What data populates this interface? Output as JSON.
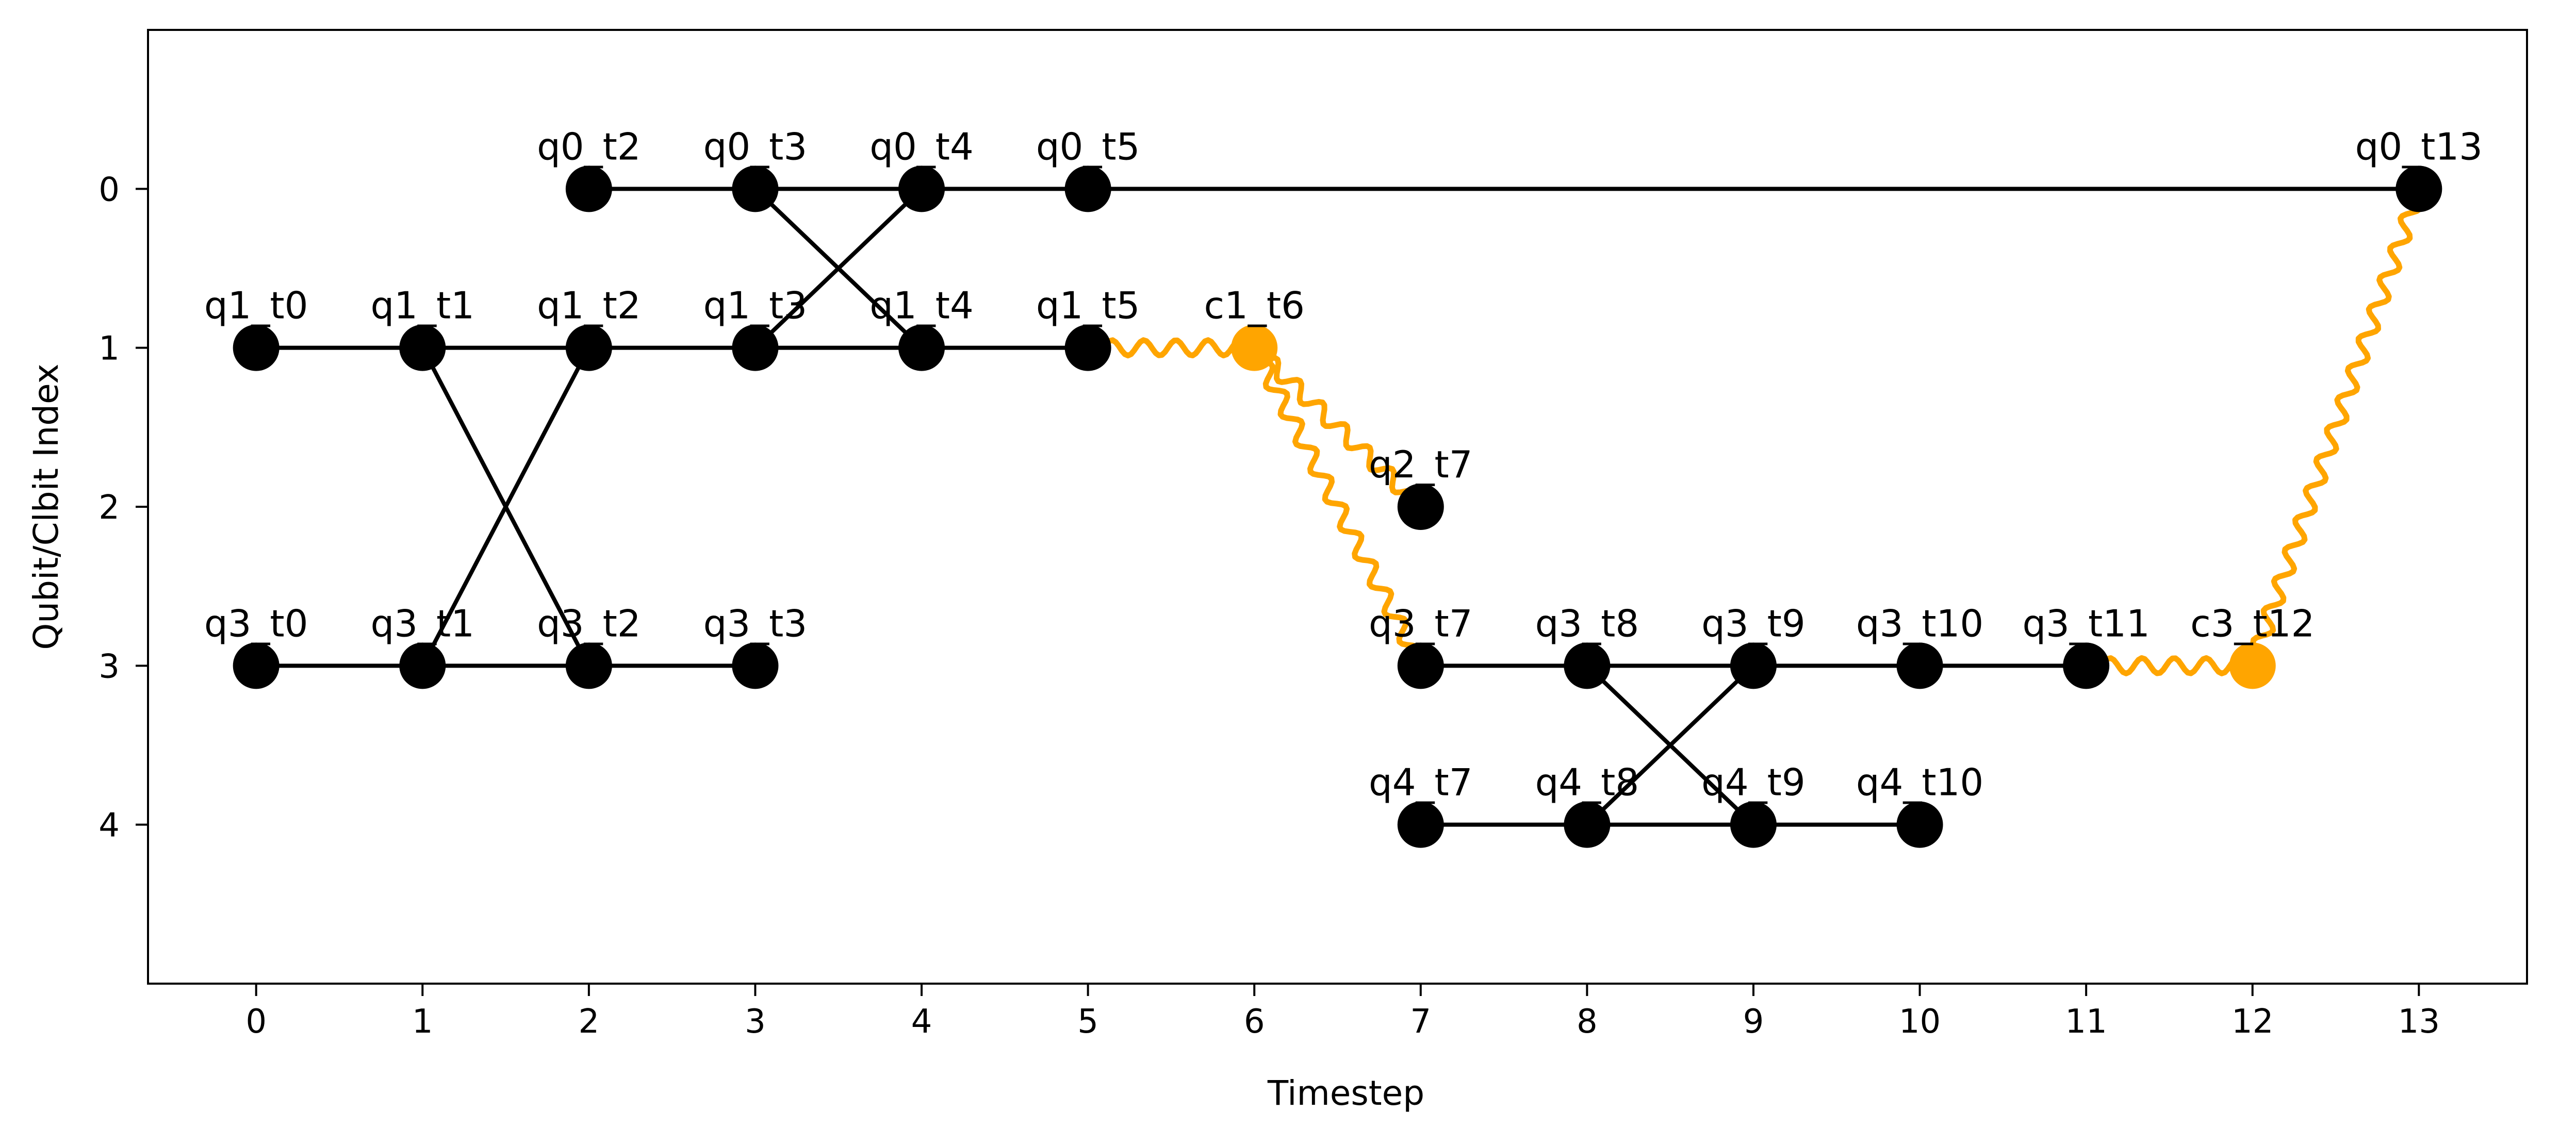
{
  "chart_data": {
    "type": "scatter",
    "title": "",
    "xlabel": "Timestep",
    "ylabel": "Qubit/Clbit Index",
    "xlim": [
      -0.65,
      13.65
    ],
    "ylim": [
      -1.0,
      5.0
    ],
    "y_inverted": true,
    "x_ticks": [
      0,
      1,
      2,
      3,
      4,
      5,
      6,
      7,
      8,
      9,
      10,
      11,
      12,
      13
    ],
    "y_ticks": [
      0,
      1,
      2,
      3,
      4
    ],
    "x_tick_labels": [
      "0",
      "1",
      "2",
      "3",
      "4",
      "5",
      "6",
      "7",
      "8",
      "9",
      "10",
      "11",
      "12",
      "13"
    ],
    "y_tick_labels": [
      "0",
      "1",
      "2",
      "3",
      "4"
    ],
    "grid": false,
    "colors": {
      "node": "#000000",
      "classical_node": "#ffa500",
      "edge": "#000000",
      "wavy_edge": "#ffa500"
    },
    "nodes": [
      {
        "label": "q0_t2",
        "x": 2,
        "y": 0,
        "kind": "qubit"
      },
      {
        "label": "q0_t3",
        "x": 3,
        "y": 0,
        "kind": "qubit"
      },
      {
        "label": "q0_t4",
        "x": 4,
        "y": 0,
        "kind": "qubit"
      },
      {
        "label": "q0_t5",
        "x": 5,
        "y": 0,
        "kind": "qubit"
      },
      {
        "label": "q0_t13",
        "x": 13,
        "y": 0,
        "kind": "qubit"
      },
      {
        "label": "q1_t0",
        "x": 0,
        "y": 1,
        "kind": "qubit"
      },
      {
        "label": "q1_t1",
        "x": 1,
        "y": 1,
        "kind": "qubit"
      },
      {
        "label": "q1_t2",
        "x": 2,
        "y": 1,
        "kind": "qubit"
      },
      {
        "label": "q1_t3",
        "x": 3,
        "y": 1,
        "kind": "qubit"
      },
      {
        "label": "q1_t4",
        "x": 4,
        "y": 1,
        "kind": "qubit"
      },
      {
        "label": "q1_t5",
        "x": 5,
        "y": 1,
        "kind": "qubit"
      },
      {
        "label": "c1_t6",
        "x": 6,
        "y": 1,
        "kind": "clbit"
      },
      {
        "label": "q2_t7",
        "x": 7,
        "y": 2,
        "kind": "qubit"
      },
      {
        "label": "q3_t0",
        "x": 0,
        "y": 3,
        "kind": "qubit"
      },
      {
        "label": "q3_t1",
        "x": 1,
        "y": 3,
        "kind": "qubit"
      },
      {
        "label": "q3_t2",
        "x": 2,
        "y": 3,
        "kind": "qubit"
      },
      {
        "label": "q3_t3",
        "x": 3,
        "y": 3,
        "kind": "qubit"
      },
      {
        "label": "q3_t7",
        "x": 7,
        "y": 3,
        "kind": "qubit"
      },
      {
        "label": "q3_t8",
        "x": 8,
        "y": 3,
        "kind": "qubit"
      },
      {
        "label": "q3_t9",
        "x": 9,
        "y": 3,
        "kind": "qubit"
      },
      {
        "label": "q3_t10",
        "x": 10,
        "y": 3,
        "kind": "qubit"
      },
      {
        "label": "q3_t11",
        "x": 11,
        "y": 3,
        "kind": "qubit"
      },
      {
        "label": "c3_t12",
        "x": 12,
        "y": 3,
        "kind": "clbit"
      },
      {
        "label": "q4_t7",
        "x": 7,
        "y": 4,
        "kind": "qubit"
      },
      {
        "label": "q4_t8",
        "x": 8,
        "y": 4,
        "kind": "qubit"
      },
      {
        "label": "q4_t9",
        "x": 9,
        "y": 4,
        "kind": "qubit"
      },
      {
        "label": "q4_t10",
        "x": 10,
        "y": 4,
        "kind": "qubit"
      }
    ],
    "edges": [
      {
        "from": "q0_t2",
        "to": "q0_t3",
        "style": "straight"
      },
      {
        "from": "q0_t3",
        "to": "q0_t4",
        "style": "straight"
      },
      {
        "from": "q0_t4",
        "to": "q0_t5",
        "style": "straight"
      },
      {
        "from": "q0_t5",
        "to": "q0_t13",
        "style": "straight"
      },
      {
        "from": "q1_t0",
        "to": "q1_t1",
        "style": "straight"
      },
      {
        "from": "q1_t1",
        "to": "q1_t2",
        "style": "straight"
      },
      {
        "from": "q1_t2",
        "to": "q1_t3",
        "style": "straight"
      },
      {
        "from": "q1_t3",
        "to": "q1_t4",
        "style": "straight"
      },
      {
        "from": "q1_t4",
        "to": "q1_t5",
        "style": "straight"
      },
      {
        "from": "q3_t0",
        "to": "q3_t1",
        "style": "straight"
      },
      {
        "from": "q3_t1",
        "to": "q3_t2",
        "style": "straight"
      },
      {
        "from": "q3_t2",
        "to": "q3_t3",
        "style": "straight"
      },
      {
        "from": "q3_t7",
        "to": "q3_t8",
        "style": "straight"
      },
      {
        "from": "q3_t8",
        "to": "q3_t9",
        "style": "straight"
      },
      {
        "from": "q3_t9",
        "to": "q3_t10",
        "style": "straight"
      },
      {
        "from": "q3_t10",
        "to": "q3_t11",
        "style": "straight"
      },
      {
        "from": "q4_t7",
        "to": "q4_t8",
        "style": "straight"
      },
      {
        "from": "q4_t8",
        "to": "q4_t9",
        "style": "straight"
      },
      {
        "from": "q4_t9",
        "to": "q4_t10",
        "style": "straight"
      },
      {
        "from": "q0_t3",
        "to": "q1_t4",
        "style": "straight"
      },
      {
        "from": "q1_t3",
        "to": "q0_t4",
        "style": "straight"
      },
      {
        "from": "q1_t1",
        "to": "q3_t2",
        "style": "straight"
      },
      {
        "from": "q3_t1",
        "to": "q1_t2",
        "style": "straight"
      },
      {
        "from": "q3_t8",
        "to": "q4_t9",
        "style": "straight"
      },
      {
        "from": "q4_t8",
        "to": "q3_t9",
        "style": "straight"
      },
      {
        "from": "q1_t5",
        "to": "c1_t6",
        "style": "wavy"
      },
      {
        "from": "c1_t6",
        "to": "q2_t7",
        "style": "wavy"
      },
      {
        "from": "c1_t6",
        "to": "q3_t7",
        "style": "wavy"
      },
      {
        "from": "q3_t11",
        "to": "c3_t12",
        "style": "wavy"
      },
      {
        "from": "c3_t12",
        "to": "q0_t13",
        "style": "wavy"
      }
    ]
  }
}
